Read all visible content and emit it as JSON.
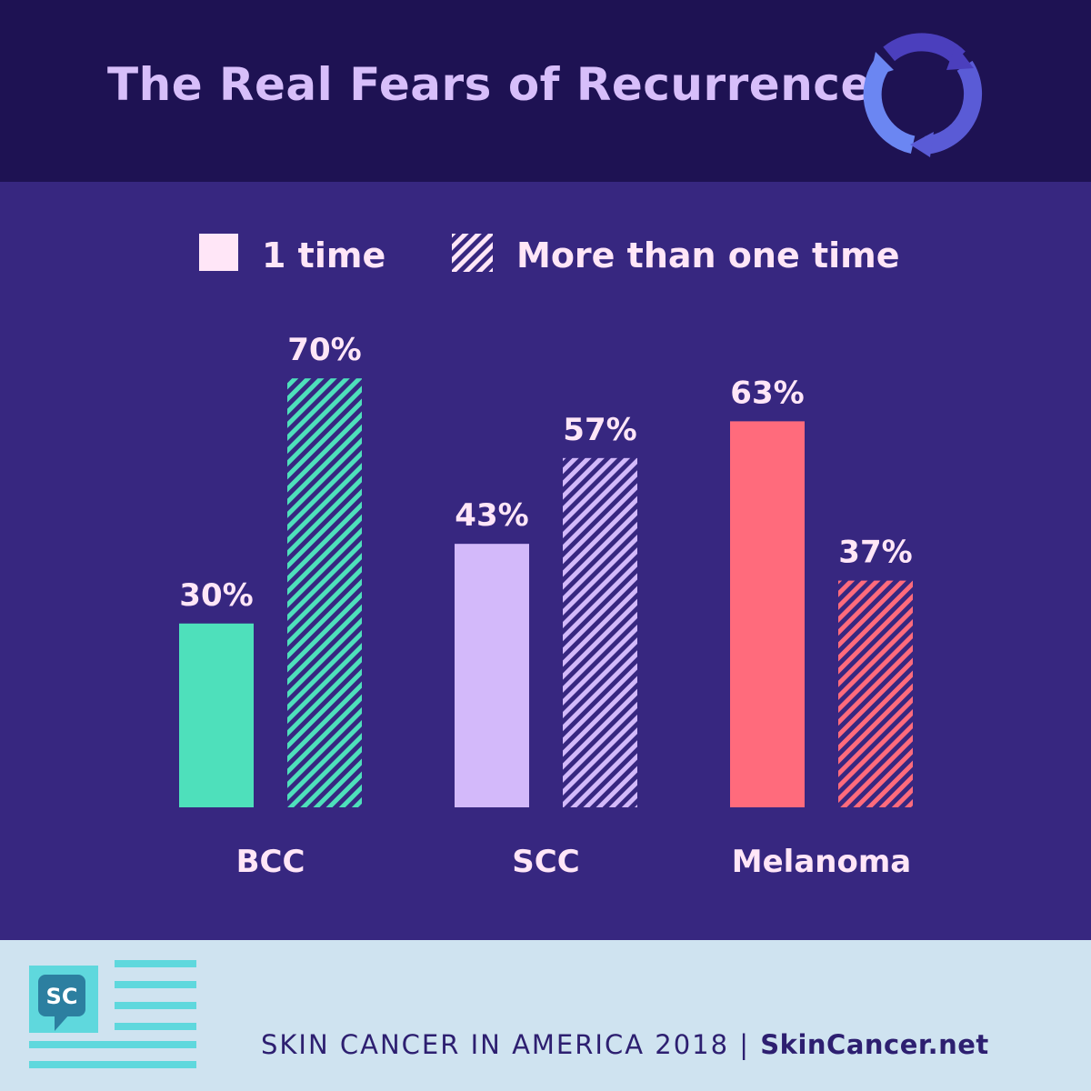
{
  "header": {
    "title": "The Real Fears of Recurrence",
    "icon": "recurrence-cycle-icon"
  },
  "colors": {
    "header_bg": "#1e1253",
    "chart_bg": "#372780",
    "footer_bg": "#cfe3f0",
    "text": "#ffe6f7",
    "bcc": "#4ee0bb",
    "scc": "#d3b9fa",
    "melanoma": "#ff6b7c"
  },
  "chart_data": {
    "type": "bar",
    "title": "The Real Fears of Recurrence",
    "categories": [
      "BCC",
      "SCC",
      "Melanoma"
    ],
    "series": [
      {
        "name": "1 time",
        "values": [
          30,
          43,
          63
        ],
        "data_labels": [
          "30%",
          "43%",
          "63%"
        ],
        "fill": "solid"
      },
      {
        "name": "More than one time",
        "values": [
          70,
          57,
          37
        ],
        "data_labels": [
          "70%",
          "57%",
          "37%"
        ],
        "fill": "hatched"
      }
    ],
    "unit": "%",
    "ylim": [
      0,
      100
    ],
    "legend": "top",
    "grid": false
  },
  "footer": {
    "logo_text": "SC",
    "logo_icon": "skincancer-chat-logo-icon",
    "text": "SKIN CANCER IN AMERICA 2018 | ",
    "brand": "SkinCancer.net"
  }
}
